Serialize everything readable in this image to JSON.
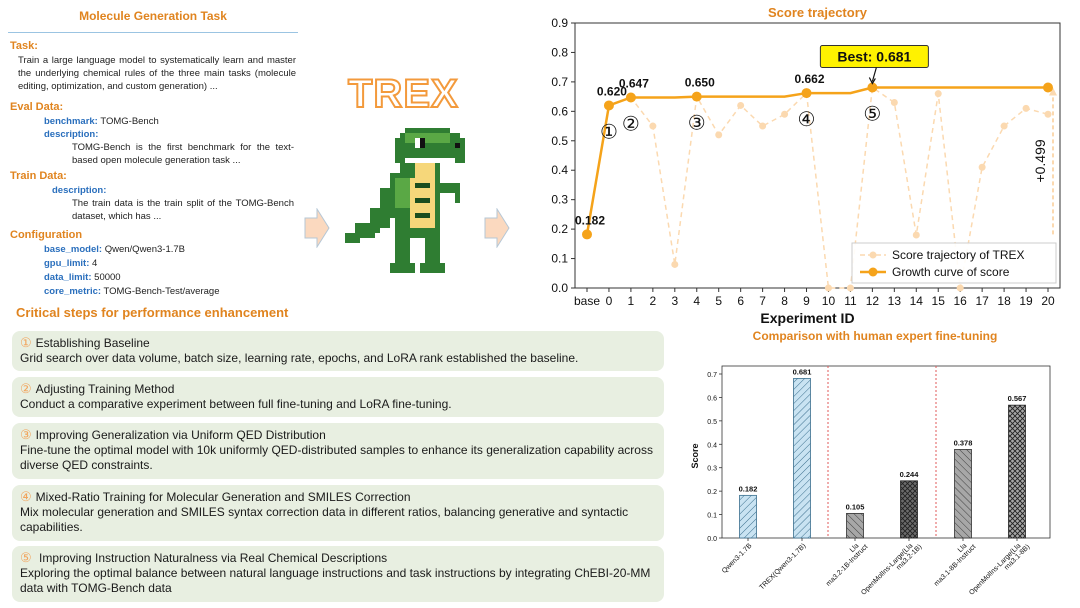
{
  "task": {
    "title": "Molecule Generation Task",
    "task_heading": "Task:",
    "task_text": "Train a large language model to systematically learn and master the underlying chemical rules of the three main tasks (molecule editing, optimization, and custom generation) ...",
    "eval_heading": "Eval Data:",
    "eval_benchmark_key": "benchmark:",
    "eval_benchmark_val": "TOMG-Bench",
    "eval_description_key": "description:",
    "eval_description_text": "TOMG-Bench is the first benchmark for the text-based open molecule generation task ...",
    "train_heading": "Train Data:",
    "train_description_key": "description:",
    "train_description_text": "The train data is the train split of the TOMG-Bench dataset, which has ...",
    "config_heading": "Configuration",
    "config": [
      {
        "key": "base_model:",
        "val": "Qwen/Qwen3-1.7B"
      },
      {
        "key": "gpu_limit:",
        "val": "4"
      },
      {
        "key": "data_limit:",
        "val": "50000"
      },
      {
        "key": "core_metric:",
        "val": "TOMG-Bench-Test/average"
      }
    ]
  },
  "trex_label": "TREX",
  "steps_title": "Critical steps for performance enhancement",
  "steps": [
    {
      "num": "①",
      "title": "Establishing Baseline",
      "text": "Grid search over data volume, batch size, learning rate, epochs, and LoRA rank established the baseline."
    },
    {
      "num": "②",
      "title": "Adjusting Training Method",
      "text": "Conduct a comparative experiment between full fine-tuning and LoRA fine-tuning."
    },
    {
      "num": "③",
      "title": "Improving Generalization via Uniform QED Distribution",
      "text": "Fine-tune the optimal model with 10k uniformly QED-distributed samples to enhance its generalization capability across diverse QED constraints."
    },
    {
      "num": "④",
      "title": "Mixed-Ratio Training for Molecular Generation and SMILES Correction",
      "text": "Mix molecular generation and SMILES syntax correction data in different ratios, balancing generative and syntactic capabilities."
    },
    {
      "num": "⑤",
      "title": " Improving Instruction Naturalness via Real Chemical Descriptions",
      "text": "Exploring the optimal balance between natural language instructions and task instructions by integrating ChEBI-20-MM data with TOMG-Bench data"
    }
  ],
  "colors": {
    "orange": "#f5a31a",
    "light_orange": "#fbd9b0",
    "accent": "#e0841f",
    "blue_bar": "#c9e3f2",
    "blue_edge": "#3b6f8e",
    "gray_bar": "#a7a7a7",
    "dark_bar": "#6b6b6b",
    "step_bg": "#e8efe1"
  },
  "chart_data": [
    {
      "type": "line",
      "title": "Score trajectory",
      "xlabel": "Experiment ID",
      "ylabel": "",
      "ylim": [
        0.0,
        0.9
      ],
      "yticks": [
        "0.0",
        "0.1",
        "0.2",
        "0.3",
        "0.4",
        "0.5",
        "0.6",
        "0.7",
        "0.8",
        "0.9"
      ],
      "categories": [
        "base",
        "0",
        "1",
        "2",
        "3",
        "4",
        "5",
        "6",
        "7",
        "8",
        "9",
        "10",
        "11",
        "12",
        "13",
        "14",
        "15",
        "16",
        "17",
        "18",
        "19",
        "20"
      ],
      "series": [
        {
          "name": "Score trajectory of TREX",
          "style": "dashed-light",
          "values": [
            0.182,
            0.62,
            0.647,
            0.55,
            0.08,
            0.65,
            0.52,
            0.62,
            0.55,
            0.59,
            0.662,
            0.0,
            0.0,
            0.681,
            0.63,
            0.18,
            0.66,
            0.0,
            0.41,
            0.55,
            0.61,
            0.59
          ]
        },
        {
          "name": "Growth curve of score",
          "style": "solid",
          "values": [
            0.182,
            0.62,
            0.647,
            0.647,
            0.647,
            0.65,
            0.65,
            0.65,
            0.65,
            0.65,
            0.662,
            0.662,
            0.662,
            0.681,
            0.681,
            0.681,
            0.681,
            0.681,
            0.681,
            0.681,
            0.681,
            0.681
          ]
        }
      ],
      "point_labels": [
        {
          "index": 0,
          "text": "0.182"
        },
        {
          "index": 1,
          "text": "0.620"
        },
        {
          "index": 2,
          "text": "0.647"
        },
        {
          "index": 5,
          "text": "0.650"
        },
        {
          "index": 10,
          "text": "0.662"
        }
      ],
      "step_markers": [
        {
          "index": 1,
          "text": "①"
        },
        {
          "index": 2,
          "text": "②"
        },
        {
          "index": 5,
          "text": "③"
        },
        {
          "index": 10,
          "text": "④"
        },
        {
          "index": 13,
          "text": "⑤"
        }
      ],
      "best": {
        "index": 13,
        "text": "Best: 0.681"
      },
      "gain": {
        "text": "+0.499",
        "from": 0.182,
        "to": 0.681
      },
      "legend_position": "lower-right"
    },
    {
      "type": "bar",
      "title": "Comparison with human expert fine-tuning",
      "xlabel": "",
      "ylabel": "Score",
      "ylim": [
        0.0,
        0.7
      ],
      "yticks": [
        "0.0",
        "0.1",
        "0.2",
        "0.3",
        "0.4",
        "0.5",
        "0.6",
        "0.7"
      ],
      "categories": [
        "Qwen3-1.7B",
        "TREX(Qwen3-1.7B)",
        "Llama3.2-1B-Instruct",
        "OpenMolIns-Large(Llama3.2-1B)",
        "Llama3.1-8B-Instruct",
        "OpenMolIns-Large(Llama3.1-8B)"
      ],
      "tick_labels": [
        [
          "Qwen3-1.7B"
        ],
        [
          "TREX(Qwen3-1.7B)"
        ],
        [
          "Lla",
          "ma3.2-1B-Instruct"
        ],
        [
          "OpenMolIns-Large(Lla",
          "ma3.2-1B)"
        ],
        [
          "Lla",
          "ma3.1-8B-Instruct"
        ],
        [
          "OpenMolIns-Large(Lla",
          "ma3.1-8B)"
        ]
      ],
      "values": [
        0.182,
        0.681,
        0.105,
        0.244,
        0.378,
        0.567
      ],
      "labels": [
        "0.182",
        "0.681",
        "0.105",
        "0.244",
        "0.378",
        "0.567"
      ]
    }
  ]
}
